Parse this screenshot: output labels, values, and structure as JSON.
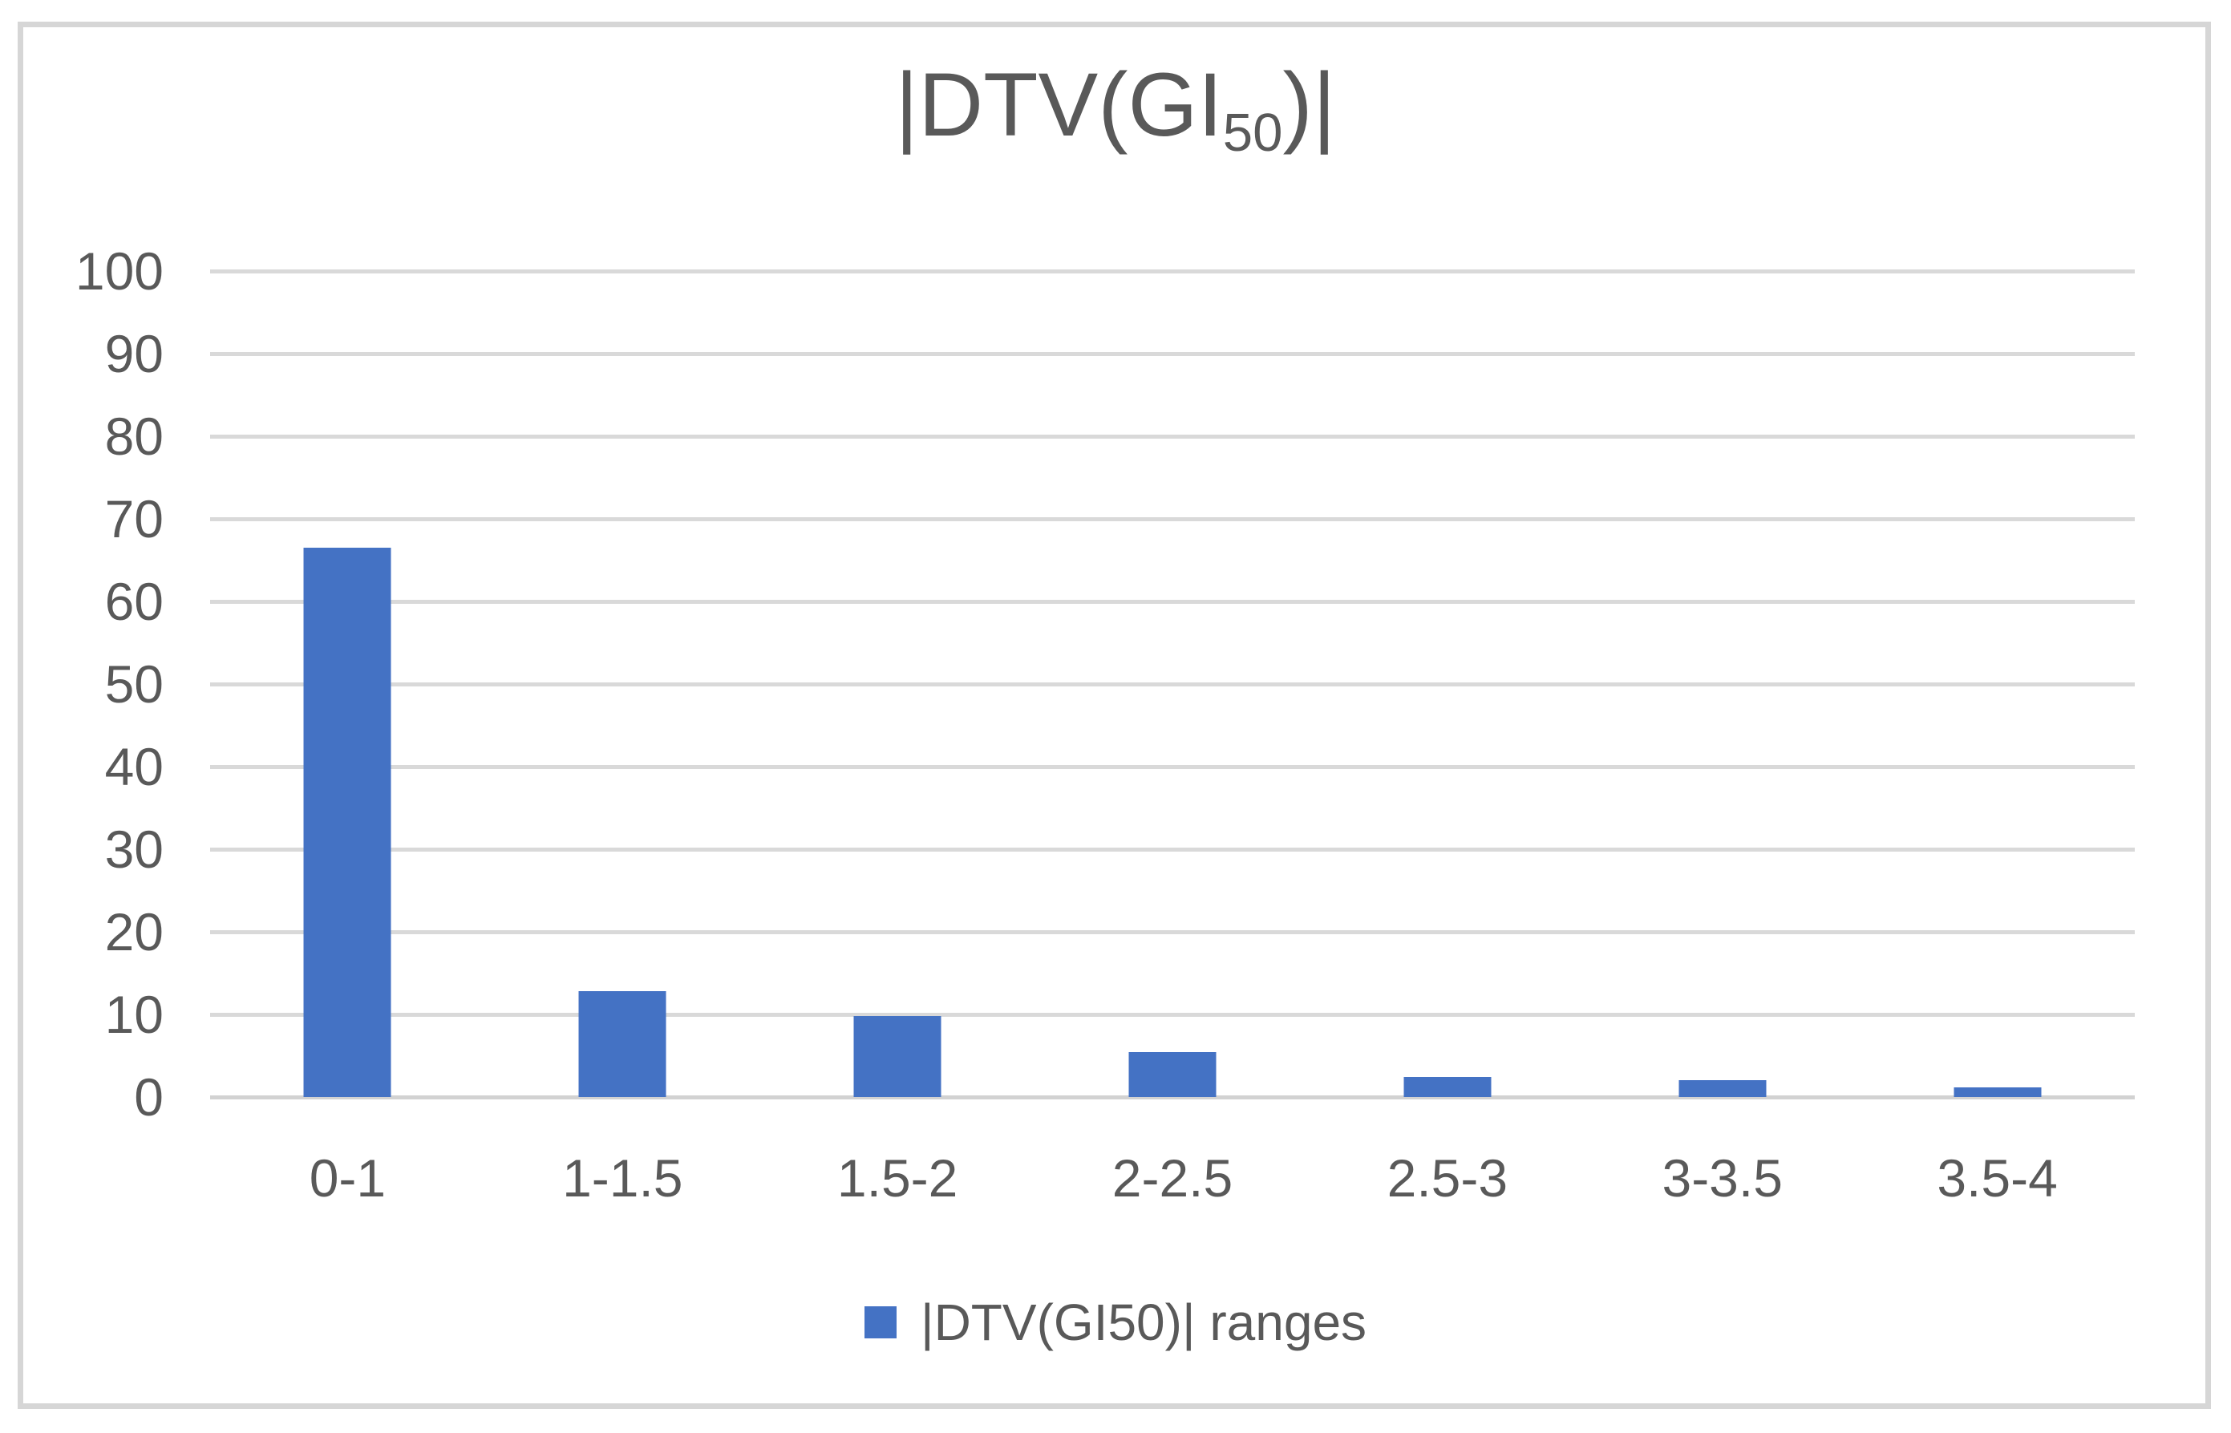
{
  "chart_data": {
    "type": "bar",
    "title": "|DTV(GI50)|",
    "title_parts": {
      "pre": "|DTV(GI",
      "sub": "50",
      "post": ")|"
    },
    "categories": [
      "0-1",
      "1-1.5",
      "1.5-2",
      "2-2.5",
      "2.5-3",
      "3-3.5",
      "3.5-4"
    ],
    "values": [
      66.5,
      12.8,
      9.8,
      5.4,
      2.4,
      2.0,
      1.2
    ],
    "series": [
      {
        "name": "|DTV(GI50)| ranges",
        "values": [
          66.5,
          12.8,
          9.8,
          5.4,
          2.4,
          2.0,
          1.2
        ]
      }
    ],
    "xlabel": "",
    "ylabel": "",
    "ylim": [
      0,
      100
    ],
    "ytick_step": 10,
    "yticks": [
      0,
      10,
      20,
      30,
      40,
      50,
      60,
      70,
      80,
      90,
      100
    ],
    "grid": true,
    "legend_position": "bottom",
    "legend_label": "|DTV(GI50)| ranges",
    "colors": {
      "bar": "#4472C4",
      "gridline": "#D9D9D9",
      "axis_line": "#D2D2D2",
      "text": "#595959",
      "chart_border": "#D6D6D6",
      "background": "#FFFFFF"
    }
  }
}
